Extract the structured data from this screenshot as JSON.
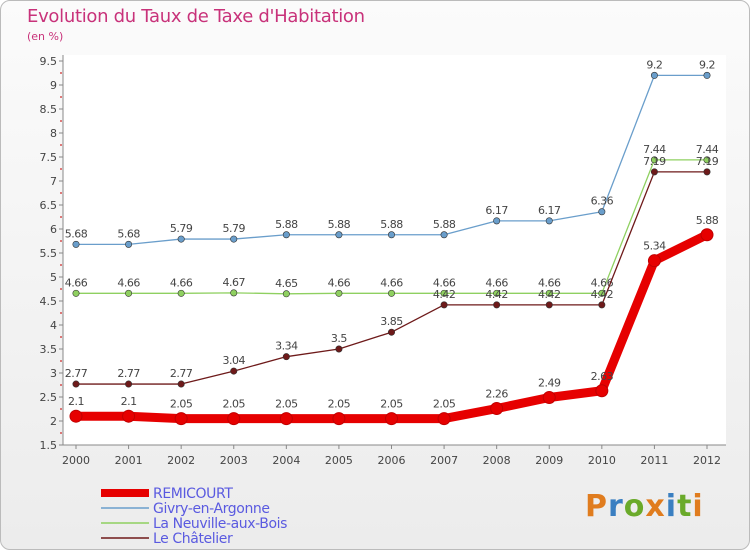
{
  "chart_data": {
    "type": "line",
    "title": "Evolution du Taux de Taxe d'Habitation",
    "ylabel": "(en %)",
    "xlabel": "",
    "categories": [
      "2000",
      "2001",
      "2002",
      "2003",
      "2004",
      "2005",
      "2006",
      "2007",
      "2008",
      "2009",
      "2010",
      "2011",
      "2012"
    ],
    "ylim": [
      1.5,
      9.5
    ],
    "yticks": [
      "1.5",
      "2",
      "2.5",
      "3",
      "3.5",
      "4",
      "4.5",
      "5",
      "5.5",
      "6",
      "6.5",
      "7",
      "7.5",
      "8",
      "8.5",
      "9",
      "9.5"
    ],
    "grid": false,
    "legend_position": "bottom-left",
    "series": [
      {
        "name": "REMICOURT",
        "color": "#e60000",
        "values": [
          2.1,
          2.1,
          2.05,
          2.05,
          2.05,
          2.05,
          2.05,
          2.05,
          2.26,
          2.49,
          2.63,
          5.34,
          5.88
        ],
        "labels": [
          "2.1",
          "2.1",
          "2.05",
          "2.05",
          "2.05",
          "2.05",
          "2.05",
          "2.05",
          "2.26",
          "2.49",
          "2.63",
          "5.34",
          "5.88"
        ]
      },
      {
        "name": "Givry-en-Argonne",
        "color": "#6a9ecb",
        "values": [
          5.68,
          5.68,
          5.79,
          5.79,
          5.88,
          5.88,
          5.88,
          5.88,
          6.17,
          6.17,
          6.36,
          9.2,
          9.2
        ],
        "labels": [
          "5.68",
          "5.68",
          "5.79",
          "5.79",
          "5.88",
          "5.88",
          "5.88",
          "5.88",
          "6.17",
          "6.17",
          "6.36",
          "9.2",
          "9.2"
        ]
      },
      {
        "name": "La Neuville-aux-Bois",
        "color": "#8fd060",
        "values": [
          4.66,
          4.66,
          4.66,
          4.67,
          4.65,
          4.66,
          4.66,
          4.66,
          4.66,
          4.66,
          4.66,
          7.44,
          7.44
        ],
        "labels": [
          "4.66",
          "4.66",
          "4.66",
          "4.67",
          "4.65",
          "4.66",
          "4.66",
          "4.66",
          "4.66",
          "4.66",
          "4.66",
          "7.44",
          "7.44"
        ]
      },
      {
        "name": "Le Châtelier",
        "color": "#6e1a1a",
        "values": [
          2.77,
          2.77,
          2.77,
          3.04,
          3.34,
          3.5,
          3.85,
          4.42,
          4.42,
          4.42,
          4.42,
          7.19,
          7.19
        ],
        "labels": [
          "2.77",
          "2.77",
          "2.77",
          "3.04",
          "3.34",
          "3.5",
          "3.85",
          "4.42",
          "4.42",
          "4.42",
          "4.42",
          "7.19",
          "7.19"
        ]
      }
    ]
  },
  "logo": {
    "text": "Proxiti",
    "colors": [
      "#e07c1e",
      "#3a7fc1",
      "#6aaa2a",
      "#e07c1e",
      "#3a7fc1",
      "#6aaa2a",
      "#e07c1e"
    ]
  }
}
